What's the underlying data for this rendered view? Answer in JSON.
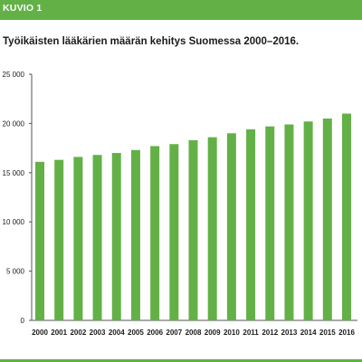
{
  "figure": {
    "label": "KUVIO 1",
    "accent_color": "#63b146",
    "bar_color": "#63b146"
  },
  "chart_data": {
    "type": "bar",
    "title": "Työikäisten lääkärien määrän kehitys Suomessa 2000–2016.",
    "xlabel": "",
    "ylabel": "",
    "ylim": [
      0,
      25000
    ],
    "yticks": [
      0,
      5000,
      10000,
      15000,
      20000,
      25000
    ],
    "ytick_labels": [
      "0",
      "5 000",
      "10 000",
      "15 000",
      "20 000",
      "25 000"
    ],
    "grid": false,
    "categories": [
      "2000",
      "2001",
      "2002",
      "2003",
      "2004",
      "2005",
      "2006",
      "2007",
      "2008",
      "2009",
      "2010",
      "2011",
      "2012",
      "2013",
      "2014",
      "2015",
      "2016"
    ],
    "values": [
      16100,
      16300,
      16600,
      16800,
      17000,
      17300,
      17700,
      17900,
      18300,
      18600,
      19000,
      19400,
      19700,
      19900,
      20200,
      20500,
      21000
    ]
  }
}
